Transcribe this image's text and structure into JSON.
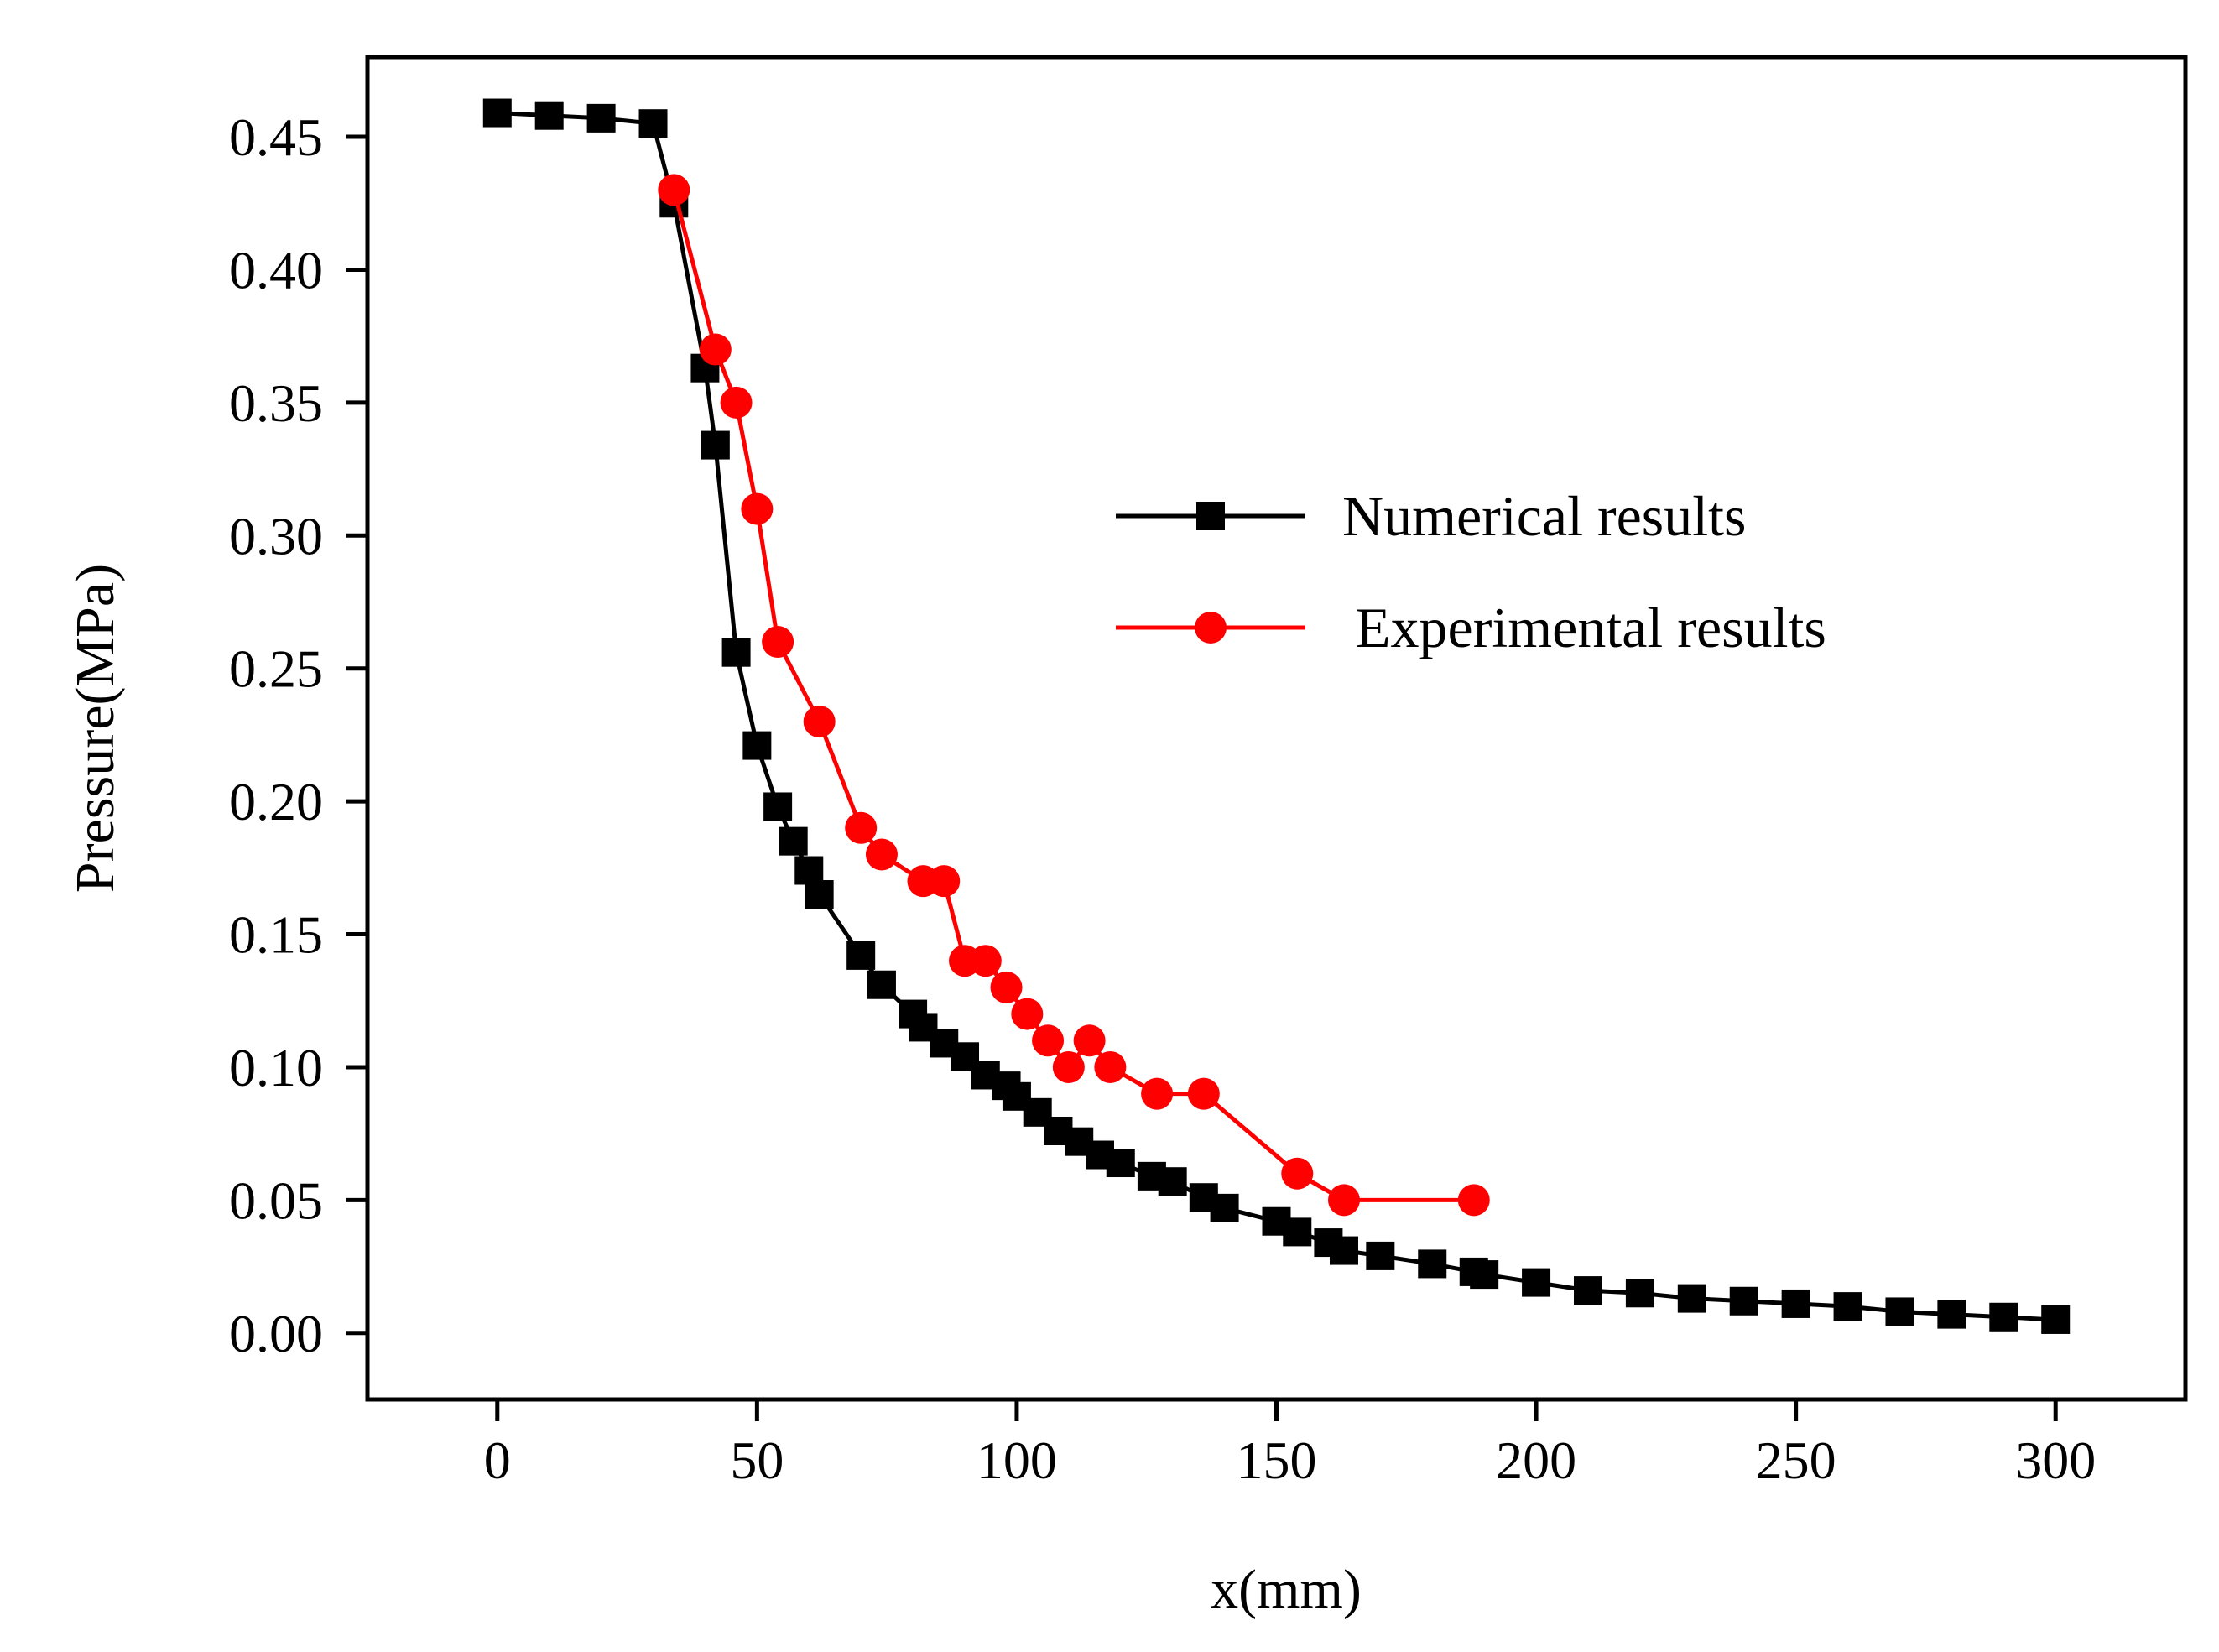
{
  "chart_data": {
    "type": "line",
    "title": "",
    "xlabel": "x(mm)",
    "ylabel": "Pressure(MPa)",
    "xlim": [
      -25,
      325
    ],
    "ylim": [
      -0.025,
      0.48
    ],
    "x_ticks": [
      0,
      50,
      100,
      150,
      200,
      250,
      300
    ],
    "x_tick_labels": [
      "0",
      "50",
      "100",
      "150",
      "200",
      "250",
      "300"
    ],
    "y_ticks": [
      0,
      0.05,
      0.1,
      0.15,
      0.2,
      0.25,
      0.3,
      0.35,
      0.4,
      0.45
    ],
    "y_tick_labels": [
      "0.00",
      "0.05",
      "0.10",
      "0.15",
      "0.20",
      "0.25",
      "0.30",
      "0.35",
      "0.40",
      "0.45"
    ],
    "grid": false,
    "legend_position": "center-right",
    "series": [
      {
        "name": "Numerical results",
        "color": "#000000",
        "marker": "square",
        "x": [
          0,
          10,
          20,
          30,
          34,
          40,
          42,
          46,
          50,
          54,
          57,
          60,
          62,
          70,
          74,
          80,
          82,
          86,
          90,
          94,
          98,
          100,
          104,
          108,
          112,
          116,
          120,
          126,
          130,
          136,
          140,
          150,
          154,
          160,
          163,
          170,
          180,
          188,
          190,
          200,
          210,
          220,
          230,
          240,
          250,
          260,
          270,
          280,
          290,
          300
        ],
        "y": [
          0.459,
          0.458,
          0.457,
          0.455,
          0.425,
          0.363,
          0.334,
          0.256,
          0.221,
          0.198,
          0.185,
          0.174,
          0.165,
          0.142,
          0.131,
          0.12,
          0.115,
          0.109,
          0.104,
          0.097,
          0.093,
          0.089,
          0.083,
          0.076,
          0.072,
          0.067,
          0.064,
          0.059,
          0.057,
          0.051,
          0.047,
          0.042,
          0.038,
          0.034,
          0.031,
          0.029,
          0.026,
          0.023,
          0.022,
          0.019,
          0.016,
          0.015,
          0.013,
          0.012,
          0.011,
          0.01,
          0.008,
          0.007,
          0.006,
          0.005
        ]
      },
      {
        "name": "Experimental results",
        "color": "#ff0000",
        "marker": "circle",
        "x": [
          34,
          42,
          46,
          50,
          54,
          62,
          70,
          74,
          82,
          86,
          90,
          94,
          98,
          102,
          106,
          110,
          114,
          118,
          127,
          136,
          154,
          163,
          188
        ],
        "y": [
          0.43,
          0.37,
          0.35,
          0.31,
          0.26,
          0.23,
          0.19,
          0.18,
          0.17,
          0.17,
          0.14,
          0.14,
          0.13,
          0.12,
          0.11,
          0.1,
          0.11,
          0.1,
          0.09,
          0.09,
          0.06,
          0.05,
          0.05
        ]
      }
    ]
  }
}
